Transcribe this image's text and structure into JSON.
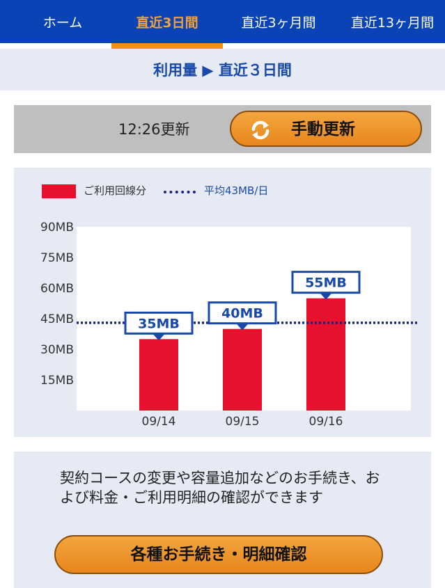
{
  "nav": {
    "tabs": [
      {
        "label": "ホーム",
        "active": false
      },
      {
        "label": "直近3日間",
        "active": true
      },
      {
        "label": "直近3ヶ月間",
        "active": false
      },
      {
        "label": "直近13ヶ月間",
        "active": false
      }
    ]
  },
  "breadcrumb": "利用量 ▶ 直近３日間",
  "update": {
    "time": "12:26更新",
    "button_label": "手動更新",
    "button_icon": "refresh-icon"
  },
  "legend": {
    "series_label": "ご利用回線分",
    "average_label": "平均43MB/日"
  },
  "colors": {
    "nav_bg": "#0a43b5",
    "active_tab": "#f2a23a",
    "bar": "#e8112d",
    "average_line": "#1a237e",
    "label_text": "#1849a9",
    "button": "#ee8e1f"
  },
  "chart_data": {
    "type": "bar",
    "categories": [
      "09/14",
      "09/15",
      "09/16"
    ],
    "values": [
      35,
      40,
      55
    ],
    "value_labels": [
      "35MB",
      "40MB",
      "55MB"
    ],
    "y_ticks": [
      "15MB",
      "30MB",
      "45MB",
      "60MB",
      "75MB",
      "90MB"
    ],
    "ylim": [
      0,
      90
    ],
    "average": 43,
    "grid": false
  },
  "info": {
    "text": "契約コースの変更や容量追加などのお手続き、および料金・ご利用明細の確認ができます",
    "button_label": "各種お手続き・明細確認"
  }
}
